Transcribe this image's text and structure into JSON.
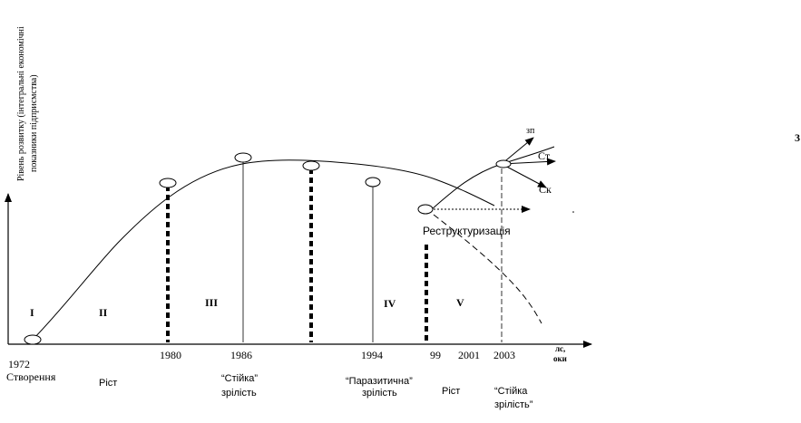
{
  "y_axis_label_line1": "Рівень розвитку (інтегральні економічні",
  "y_axis_label_line2": "показники підприємства)",
  "x_axis_label_line1": "лс,",
  "x_axis_label_line2": "оки",
  "page_number": "3",
  "stages": [
    "I",
    "II",
    "III",
    "IV",
    "V"
  ],
  "years": {
    "y1972": "1972",
    "y1980": "1980",
    "y1986": "1986",
    "y1994": "1994",
    "y99": "99",
    "y2001": "2001",
    "y2003": "2003"
  },
  "phase_labels": {
    "creation": "Створення",
    "growth1": "Ріст",
    "stable_maturity_1a": "“Стійка”",
    "stable_maturity_1b": "зрілість",
    "parasitic_a": "“Паразитична”",
    "parasitic_b": "зрілість",
    "growth2": "Ріст",
    "stable_maturity_2a": "“Стійка",
    "stable_maturity_2b": "зрілість”"
  },
  "restructuring_label": "Реструктуризація",
  "scenario_labels": {
    "zp": "зп",
    "st": "Ст",
    "sk": "Ск"
  }
}
